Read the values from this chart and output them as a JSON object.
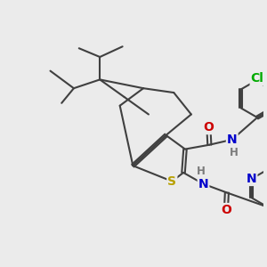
{
  "bg_color": "#ebebeb",
  "bond_color": "#404040",
  "bond_width": 1.5,
  "atom_colors": {
    "S": "#b8a000",
    "N": "#0000cc",
    "O": "#cc0000",
    "Cl": "#00aa00",
    "C": "#404040",
    "H": "#7a7a7a"
  },
  "font_size_atom": 10,
  "font_size_h": 8.5,
  "figsize": [
    3.0,
    3.0
  ],
  "dpi": 100
}
